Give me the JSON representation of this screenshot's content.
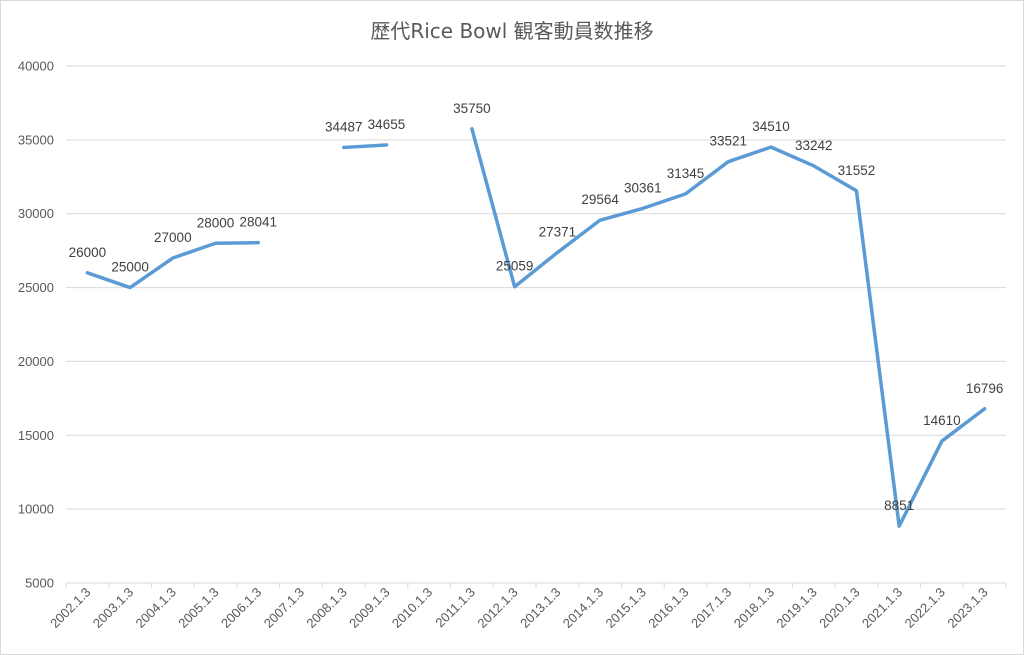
{
  "chart_data": {
    "type": "line",
    "title": "歴代Rice Bowl 観客動員数推移",
    "categories": [
      "2002.1.3",
      "2003.1.3",
      "2004.1.3",
      "2005.1.3",
      "2006.1.3",
      "2007.1.3",
      "2008.1.3",
      "2009.1.3",
      "2010.1.3",
      "2011.1.3",
      "2012.1.3",
      "2013.1.3",
      "2014.1.3",
      "2015.1.3",
      "2016.1.3",
      "2017.1.3",
      "2018.1.3",
      "2019.1.3",
      "2020.1.3",
      "2021.1.3",
      "2022.1.3",
      "2023.1.3"
    ],
    "series": [
      {
        "values": [
          26000,
          25000,
          27000,
          28000,
          28041,
          null,
          34487,
          34655,
          null,
          35750,
          25059,
          27371,
          29564,
          30361,
          31345,
          33521,
          34510,
          33242,
          31552,
          8851,
          14610,
          16796
        ]
      }
    ],
    "ylim": [
      5000,
      40000
    ],
    "yticks": [
      5000,
      10000,
      15000,
      20000,
      25000,
      30000,
      35000,
      40000
    ],
    "grid": true,
    "line_color": "#5b9bd5"
  }
}
